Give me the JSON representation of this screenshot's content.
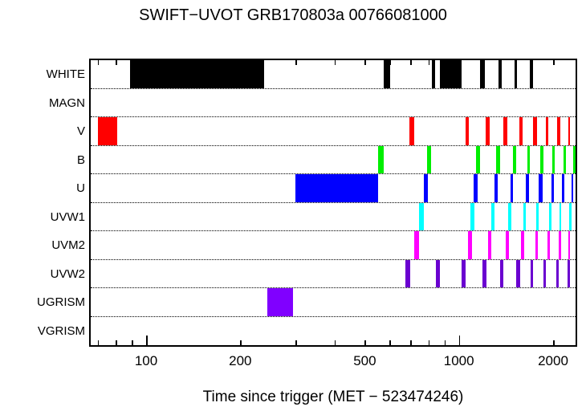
{
  "title": "SWIFT−UVOT GRB170803a 00766081000",
  "xlabel": "Time since trigger (MET − 523474246)",
  "chart_data": {
    "type": "bar",
    "subtype": "exposure-timeline-gantt",
    "x_scale": "log",
    "xlim": [
      66.5,
      2360
    ],
    "x_labeled_ticks": [
      100,
      200,
      500,
      1000,
      2000
    ],
    "x_major_ticks": [
      100,
      1000
    ],
    "x_minor_ticks": [
      70,
      80,
      90,
      100,
      200,
      300,
      400,
      500,
      600,
      700,
      800,
      900,
      1000,
      2000
    ],
    "grid": "dotted-row-separators",
    "rows": [
      {
        "label": "WHITE",
        "color": "#000000",
        "intervals": [
          [
            89,
            238
          ],
          [
            574,
            601
          ],
          [
            818,
            840
          ],
          [
            867,
            1018
          ],
          [
            1166,
            1208
          ],
          [
            1336,
            1374
          ],
          [
            1503,
            1538
          ],
          [
            1682,
            1730
          ]
        ]
      },
      {
        "label": "MAGN",
        "color": "#000000",
        "intervals": []
      },
      {
        "label": "V",
        "color": "#ff0000",
        "intervals": [
          [
            70,
            81
          ],
          [
            693,
            718
          ],
          [
            1048,
            1078
          ],
          [
            1215,
            1252
          ],
          [
            1384,
            1426
          ],
          [
            1556,
            1596
          ],
          [
            1730,
            1774
          ],
          [
            1892,
            1926
          ],
          [
            2055,
            2104
          ],
          [
            2234,
            2270
          ]
        ]
      },
      {
        "label": "B",
        "color": "#00ee00",
        "intervals": [
          [
            551,
            574
          ],
          [
            789,
            813
          ],
          [
            1132,
            1166
          ],
          [
            1312,
            1352
          ],
          [
            1486,
            1521
          ],
          [
            1652,
            1690
          ],
          [
            1816,
            1858
          ],
          [
            1982,
            2018
          ],
          [
            2153,
            2193
          ],
          [
            2312,
            2355
          ]
        ]
      },
      {
        "label": "U",
        "color": "#0000ff",
        "intervals": [
          [
            300,
            551
          ],
          [
            771,
            794
          ],
          [
            1112,
            1146
          ],
          [
            1297,
            1327
          ],
          [
            1459,
            1493
          ],
          [
            1633,
            1671
          ],
          [
            1803,
            1849
          ],
          [
            1972,
            2009
          ],
          [
            2128,
            2168
          ],
          [
            2286,
            2312
          ]
        ]
      },
      {
        "label": "UVW1",
        "color": "#00ffff",
        "intervals": [
          [
            745,
            771
          ],
          [
            1087,
            1119
          ],
          [
            1266,
            1297
          ],
          [
            1434,
            1468
          ],
          [
            1604,
            1633
          ],
          [
            1762,
            1795
          ],
          [
            1937,
            1972
          ],
          [
            2092,
            2128
          ],
          [
            2246,
            2299
          ]
        ]
      },
      {
        "label": "UVM2",
        "color": "#ff00ff",
        "intervals": [
          [
            718,
            748
          ],
          [
            1066,
            1099
          ],
          [
            1236,
            1266
          ],
          [
            1409,
            1443
          ],
          [
            1574,
            1613
          ],
          [
            1752,
            1784
          ],
          [
            1914,
            1950
          ],
          [
            2078,
            2116
          ],
          [
            2234,
            2270
          ]
        ]
      },
      {
        "label": "UVW2",
        "color": "#6a00d0",
        "intervals": [
          [
            673,
            698
          ],
          [
            843,
            867
          ],
          [
            1018,
            1049
          ],
          [
            1186,
            1222
          ],
          [
            1352,
            1384
          ],
          [
            1521,
            1566
          ],
          [
            1690,
            1722
          ],
          [
            1858,
            1892
          ],
          [
            2042,
            2078
          ],
          [
            2218,
            2259
          ]
        ]
      },
      {
        "label": "UGRISM",
        "color": "#8000ff",
        "intervals": [
          [
            244,
            295
          ]
        ]
      },
      {
        "label": "VGRISM",
        "color": "#8000ff",
        "intervals": []
      }
    ]
  }
}
